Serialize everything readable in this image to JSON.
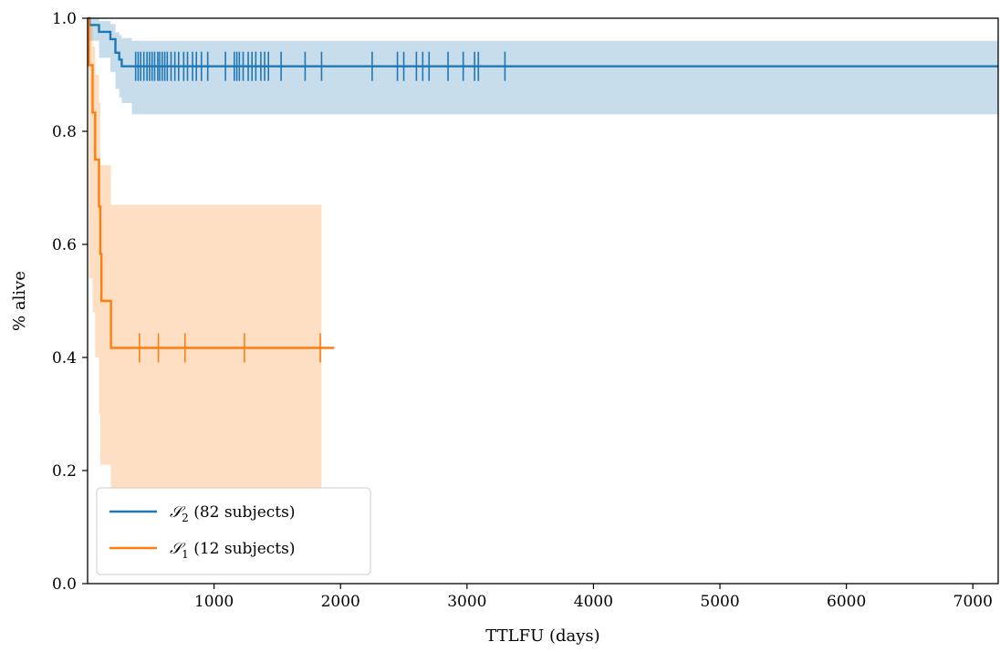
{
  "chart_data": {
    "type": "line",
    "subtype": "kaplan-meier",
    "title": "",
    "xlabel": "TTLFU (days)",
    "ylabel": "% alive",
    "xlim": [
      0,
      7200
    ],
    "ylim": [
      0.0,
      1.0
    ],
    "xticks": [
      1000,
      2000,
      3000,
      4000,
      5000,
      6000,
      7000
    ],
    "yticks": [
      0.0,
      0.2,
      0.4,
      0.6,
      0.8,
      1.0
    ],
    "xtick_labels": [
      "1000",
      "2000",
      "3000",
      "4000",
      "5000",
      "6000",
      "7000"
    ],
    "ytick_labels": [
      "0.0",
      "0.2",
      "0.4",
      "0.6",
      "0.8",
      "1.0"
    ],
    "grid": false,
    "legend_position": "bottom-left",
    "series": [
      {
        "name": "𝒮₂ (82 subjects)",
        "name_main": "𝒮",
        "name_sub": "2",
        "name_rest": " (82 subjects)",
        "color": "#1f77b4",
        "band_color": "#1f77b4",
        "end_x": 7200,
        "steps": [
          {
            "x": 0,
            "y": 1.0
          },
          {
            "x": 15,
            "y": 0.988
          },
          {
            "x": 90,
            "y": 0.976
          },
          {
            "x": 180,
            "y": 0.963
          },
          {
            "x": 220,
            "y": 0.939
          },
          {
            "x": 250,
            "y": 0.927
          },
          {
            "x": 270,
            "y": 0.915
          }
        ],
        "ci_steps": [
          {
            "x": 0,
            "lo": 1.0,
            "hi": 1.0
          },
          {
            "x": 15,
            "lo": 0.96,
            "hi": 1.0
          },
          {
            "x": 90,
            "lo": 0.93,
            "hi": 0.995
          },
          {
            "x": 180,
            "lo": 0.905,
            "hi": 0.99
          },
          {
            "x": 220,
            "lo": 0.875,
            "hi": 0.975
          },
          {
            "x": 250,
            "lo": 0.86,
            "hi": 0.97
          },
          {
            "x": 270,
            "lo": 0.85,
            "hi": 0.965
          },
          {
            "x": 350,
            "lo": 0.83,
            "hi": 0.96
          }
        ],
        "censor_times": [
          380,
          400,
          420,
          445,
          470,
          490,
          510,
          530,
          555,
          570,
          590,
          610,
          630,
          660,
          690,
          720,
          760,
          790,
          830,
          860,
          900,
          950,
          1090,
          1160,
          1180,
          1200,
          1230,
          1270,
          1300,
          1330,
          1370,
          1400,
          1430,
          1530,
          1720,
          1850,
          2250,
          2450,
          2500,
          2600,
          2650,
          2700,
          2850,
          2970,
          3060,
          3090,
          3300
        ]
      },
      {
        "name": "𝒮₁ (12 subjects)",
        "name_main": "𝒮",
        "name_sub": "1",
        "name_rest": " (12 subjects)",
        "color": "#ff7f0e",
        "band_color": "#ff7f0e",
        "end_x": 1950,
        "steps": [
          {
            "x": 0,
            "y": 1.0
          },
          {
            "x": 10,
            "y": 0.917
          },
          {
            "x": 40,
            "y": 0.833
          },
          {
            "x": 60,
            "y": 0.75
          },
          {
            "x": 90,
            "y": 0.667
          },
          {
            "x": 100,
            "y": 0.583
          },
          {
            "x": 110,
            "y": 0.5
          },
          {
            "x": 185,
            "y": 0.417
          }
        ],
        "ci_steps": [
          {
            "x": 0,
            "lo": 1.0,
            "hi": 1.0
          },
          {
            "x": 10,
            "lo": 0.54,
            "hi": 0.99
          },
          {
            "x": 40,
            "lo": 0.48,
            "hi": 0.95
          },
          {
            "x": 60,
            "lo": 0.4,
            "hi": 0.9
          },
          {
            "x": 90,
            "lo": 0.3,
            "hi": 0.85
          },
          {
            "x": 100,
            "lo": 0.21,
            "hi": 0.74
          },
          {
            "x": 185,
            "lo": 0.165,
            "hi": 0.67
          },
          {
            "x": 1850,
            "lo": null,
            "hi": null
          }
        ],
        "censor_times": [
          410,
          560,
          770,
          1240,
          1840
        ]
      }
    ]
  }
}
